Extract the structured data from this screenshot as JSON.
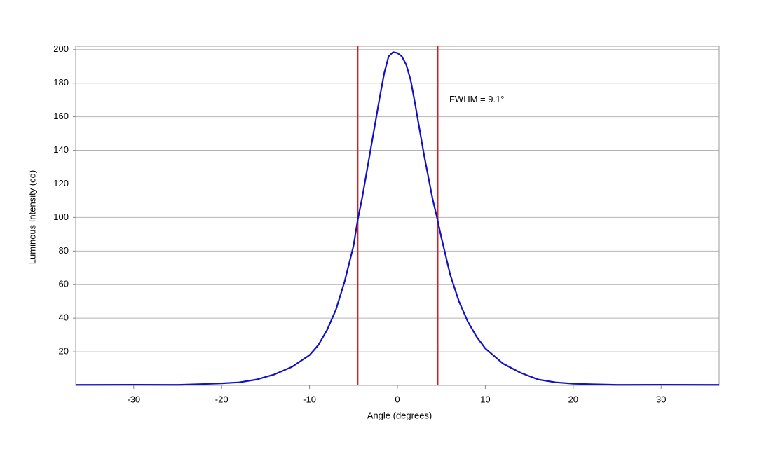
{
  "chart_data": {
    "type": "line",
    "xlabel": "Angle (degrees)",
    "ylabel": "Luminous Intensity (cd)",
    "annotation": {
      "text": "FWHM = 9.1°",
      "x": 5.9,
      "y": 170
    },
    "x": [
      -36.6,
      -30,
      -25,
      -22,
      -20,
      -18,
      -16,
      -14,
      -12,
      -10,
      -9,
      -8,
      -7,
      -6,
      -5,
      -4.5,
      -4,
      -3,
      -2,
      -1.5,
      -1,
      -0.5,
      0,
      0.5,
      1,
      1.5,
      2,
      3,
      4,
      4.5,
      5,
      6,
      7,
      8,
      9,
      10,
      12,
      14,
      16,
      18,
      20,
      22,
      25,
      30,
      36.6
    ],
    "series": [
      {
        "color": "#1010c8",
        "values": [
          0.3,
          0.4,
          0.3,
          0.8,
          1.2,
          1.8,
          3.5,
          6.5,
          11,
          18,
          24,
          33,
          45,
          62,
          83,
          99,
          112,
          142,
          172,
          186,
          196,
          198.5,
          198,
          196,
          191,
          182,
          168,
          138,
          111,
          100,
          88,
          66,
          50,
          38,
          29,
          22,
          13,
          7.5,
          3.5,
          1.8,
          1.0,
          0.7,
          0.3,
          0.4,
          0.3
        ]
      }
    ],
    "vertical_lines": {
      "color": "#d02020",
      "values": [
        -4.5,
        4.6
      ]
    },
    "xlim": [
      -36.6,
      36.6
    ],
    "xticks": [
      -30,
      -20,
      -10,
      0,
      10,
      20,
      30
    ],
    "ylim": [
      0,
      202
    ],
    "yticks": [
      20,
      40,
      60,
      80,
      100,
      120,
      140,
      160,
      180,
      200
    ],
    "grid": true
  }
}
